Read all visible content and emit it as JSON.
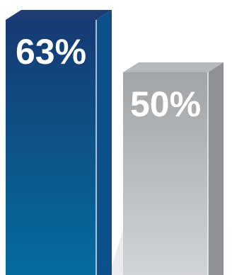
{
  "chart_data": {
    "type": "bar",
    "style": "3d-column",
    "categories": [
      "",
      ""
    ],
    "values": [
      63,
      50
    ],
    "data_labels": [
      "63%",
      "50%"
    ],
    "ylim": [
      0,
      63
    ],
    "grid": false,
    "legend": "none",
    "colors": {
      "bar_1_front_top": "#163a73",
      "bar_1_front_bottom": "#046c9f",
      "bar_1_side": "#0b4f8b",
      "bar_1_top": "#1f3d75",
      "bar_2_front_top": "#a2a4a6",
      "bar_2_front_bottom": "#d2d3d5",
      "bar_2_side": "#8f9194",
      "bar_2_top": "#b7b8ba",
      "shadow": "#e6e7e9",
      "label": "#ffffff"
    }
  }
}
